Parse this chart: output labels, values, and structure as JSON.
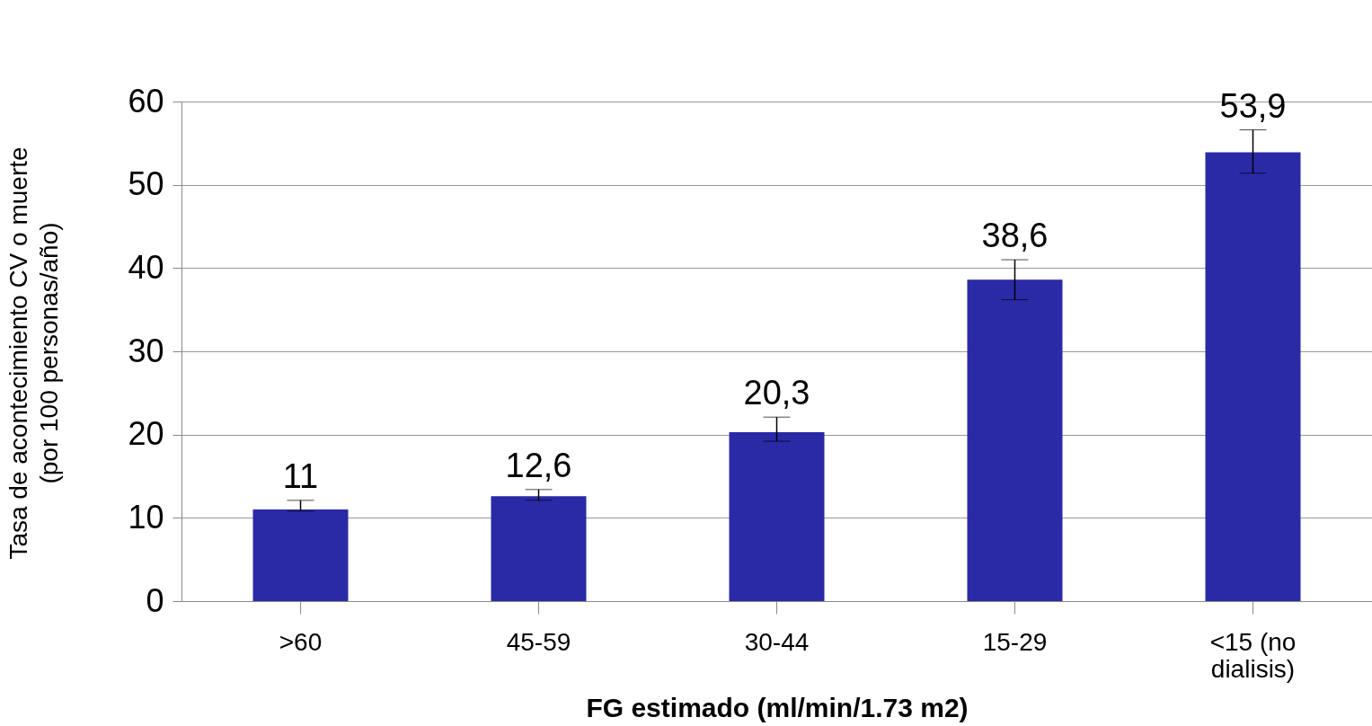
{
  "chart_data": {
    "type": "bar",
    "xlabel": "FG estimado (ml/min/1.73 m2)",
    "ylabel": "Tasa de acontecimiento CV o muerte\n(por 100 personas/año)",
    "categories": [
      ">60",
      "45-59",
      "30-44",
      "15-29",
      "<15 (no dialisis)"
    ],
    "values": [
      11,
      12.6,
      20.3,
      38.6,
      53.9
    ],
    "value_labels": [
      "11",
      "12,6",
      "20,3",
      "38,6",
      "53,9"
    ],
    "errors": [
      [
        10.8,
        12.1
      ],
      [
        12.1,
        13.4
      ],
      [
        19.2,
        22.1
      ],
      [
        36.2,
        41.0
      ],
      [
        51.4,
        56.6
      ]
    ],
    "color": "#2a2aa6",
    "ylim": [
      0,
      60
    ],
    "yticks": [
      0,
      10,
      20,
      30,
      40,
      50,
      60
    ],
    "grid": "y"
  }
}
